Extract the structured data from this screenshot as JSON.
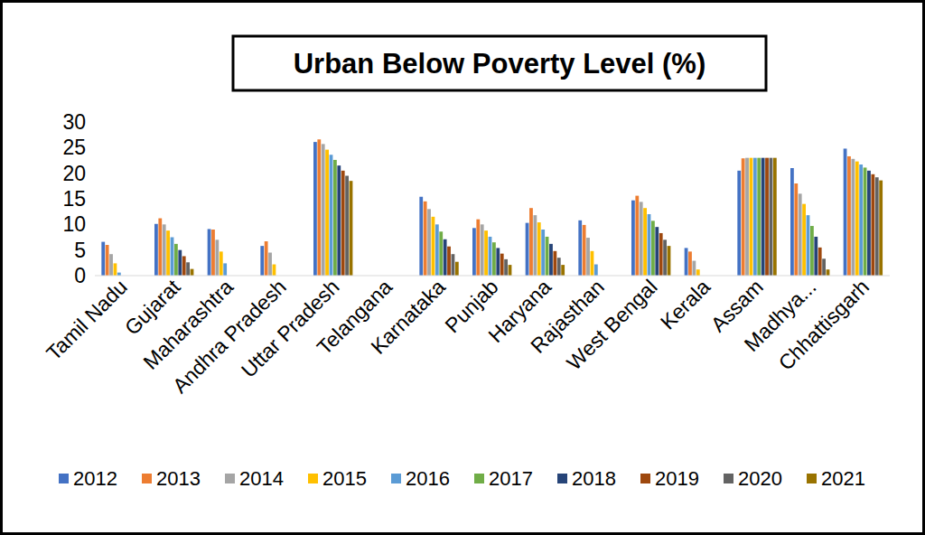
{
  "chart_data": {
    "type": "bar",
    "title": "Urban Below Poverty Level (%)",
    "categories": [
      "Tamil Nadu",
      "Gujarat",
      "Maharashtra",
      "Andhra Pradesh",
      "Uttar Pradesh",
      "Telangana",
      "Karnataka",
      "Punjab",
      "Haryana",
      "Rajasthan",
      "West Bengal",
      "Kerala",
      "Assam",
      "Madhya...",
      "Chhattisgarh"
    ],
    "series": [
      {
        "name": "2012",
        "color": "#4472c4",
        "values": [
          6.6,
          10.1,
          9.1,
          5.8,
          26.1,
          0,
          15.4,
          9.3,
          10.3,
          10.8,
          14.7,
          5.4,
          20.5,
          21.0,
          24.8
        ]
      },
      {
        "name": "2013",
        "color": "#ed7d31",
        "values": [
          6.0,
          11.2,
          9.0,
          6.7,
          26.6,
          0,
          14.5,
          11.0,
          13.2,
          9.9,
          15.6,
          4.7,
          22.9,
          18.0,
          23.3
        ]
      },
      {
        "name": "2014",
        "color": "#a5a5a5",
        "values": [
          4.2,
          10.0,
          7.0,
          4.5,
          25.7,
          0,
          13.0,
          10.0,
          11.8,
          7.4,
          14.4,
          2.9,
          23.0,
          16.0,
          22.8
        ]
      },
      {
        "name": "2015",
        "color": "#ffc000",
        "values": [
          2.4,
          8.8,
          4.7,
          2.2,
          24.6,
          0,
          11.5,
          8.8,
          10.4,
          4.8,
          13.2,
          1.2,
          23.0,
          14.0,
          22.3
        ]
      },
      {
        "name": "2016",
        "color": "#5b9bd5",
        "values": [
          0.6,
          7.5,
          2.4,
          0,
          23.6,
          0,
          10.0,
          7.6,
          9.0,
          2.2,
          12.0,
          0,
          23.0,
          11.8,
          21.7
        ]
      },
      {
        "name": "2017",
        "color": "#70ad47",
        "values": [
          0,
          6.2,
          0,
          0,
          22.6,
          0,
          8.6,
          6.5,
          7.6,
          0,
          10.7,
          0,
          23.0,
          9.7,
          21.1
        ]
      },
      {
        "name": "2018",
        "color": "#264478",
        "values": [
          0,
          5.0,
          0,
          0,
          21.5,
          0,
          7.1,
          5.4,
          6.2,
          0,
          9.5,
          0,
          23.0,
          7.6,
          20.5
        ]
      },
      {
        "name": "2019",
        "color": "#9e480e",
        "values": [
          0,
          3.8,
          0,
          0,
          20.5,
          0,
          5.7,
          4.3,
          4.8,
          0,
          8.3,
          0,
          23.0,
          5.5,
          19.8
        ]
      },
      {
        "name": "2020",
        "color": "#636363",
        "values": [
          0,
          2.6,
          0,
          0,
          19.5,
          0,
          4.2,
          3.2,
          3.5,
          0,
          7.0,
          0,
          23.0,
          3.3,
          19.2
        ]
      },
      {
        "name": "2021",
        "color": "#997300",
        "values": [
          0,
          1.3,
          0,
          0,
          18.5,
          0,
          2.7,
          2.1,
          2.1,
          0,
          5.8,
          0,
          23.0,
          1.2,
          18.6
        ]
      }
    ],
    "ylim": [
      0,
      30
    ],
    "yticks": [
      0,
      5,
      10,
      15,
      20,
      25,
      30
    ],
    "grid": false,
    "legend": "bottom"
  }
}
